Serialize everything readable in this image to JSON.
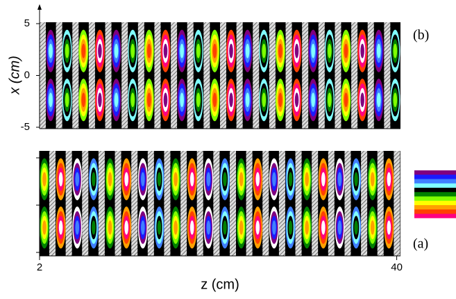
{
  "chart_data": [
    {
      "type": "field-map",
      "label": "(b)",
      "ylabel": "x (cm)",
      "ylim": [
        -5,
        5
      ],
      "yticks": [
        5,
        0,
        -5
      ]
    },
    {
      "type": "field-map",
      "label": "(a)",
      "xlabel": "z (cm)",
      "xlim": [
        2,
        40.4
      ],
      "xticks": [
        2,
        40
      ]
    }
  ],
  "colorbar": [
    "#800080",
    "#1a1aff",
    "#3f7fff",
    "#80ffff",
    "#000000",
    "#008000",
    "#80ff00",
    "#ffff00",
    "#ffa000",
    "#ff4000",
    "#ff0080",
    "#ffffff"
  ]
}
